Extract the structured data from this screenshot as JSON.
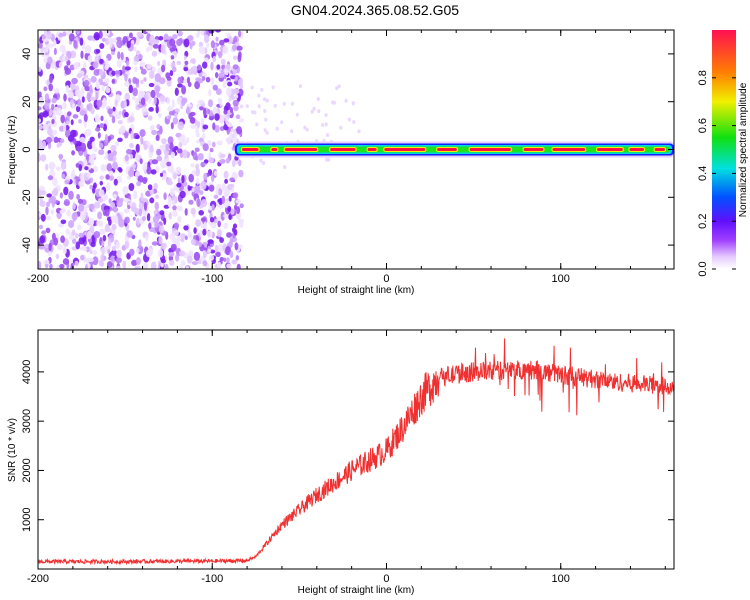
{
  "title": "GN04.2024.365.08.52.G05",
  "colors": {
    "snr_line": "#f03030",
    "scatter_noise": "#8a2be2",
    "frame": "#000000"
  },
  "chart_data": [
    {
      "type": "heatmap",
      "title": "GN04.2024.365.08.52.G05",
      "xlabel": "Height of straight line (km)",
      "ylabel": "Frequency (Hz)",
      "xlim": [
        -200,
        165
      ],
      "ylim": [
        -50,
        50
      ],
      "x_ticks": [
        -200,
        -100,
        0,
        100
      ],
      "y_ticks": [
        -40,
        -20,
        0,
        20,
        40
      ],
      "colorbar": {
        "label": "Normalized spectral amplitude",
        "range": [
          0,
          1
        ],
        "ticks": [
          "0.0",
          "0.2",
          "0.4",
          "0.6",
          "0.8"
        ],
        "colormap": "rainbow (white-violet-blue-cyan-green-yellow-red)"
      },
      "features": {
        "noise_region_x": [
          -200,
          -83
        ],
        "signal_band_x": [
          -87,
          165
        ],
        "signal_band_frequency": 0,
        "signal_band_peak_amplitude": 0.95
      }
    },
    {
      "type": "line",
      "xlabel": "Height of straight line (km)",
      "ylabel": "SNR (10 * v/v)",
      "xlim": [
        -200,
        165
      ],
      "ylim": [
        0,
        4850
      ],
      "x_ticks": [
        -200,
        -100,
        0,
        100
      ],
      "y_ticks": [
        1000,
        2000,
        3000,
        4000
      ],
      "series": [
        {
          "x": [
            -200,
            -150,
            -100,
            -80,
            -75,
            -60,
            -40,
            -20,
            0,
            10,
            20,
            30,
            50,
            80,
            100,
            130,
            165
          ],
          "y": [
            150,
            150,
            160,
            170,
            250,
            900,
            1500,
            2000,
            2400,
            2900,
            3500,
            3900,
            4000,
            4050,
            3950,
            3800,
            3700
          ]
        }
      ]
    }
  ]
}
